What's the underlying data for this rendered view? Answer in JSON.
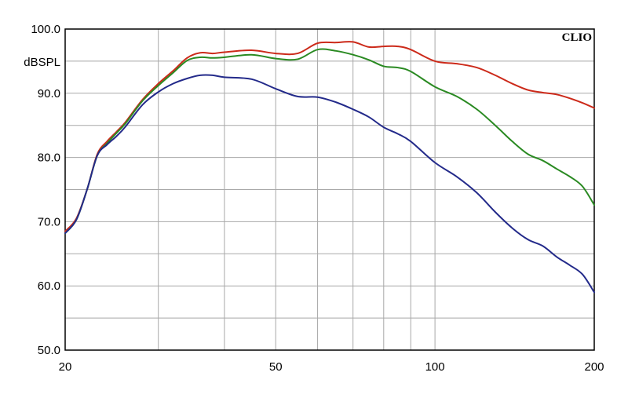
{
  "chart_data": {
    "type": "line",
    "title": "",
    "brand_label": "CLIO",
    "xlabel": "",
    "ylabel": "dBSPL",
    "x_scale": "log",
    "xlim": [
      20,
      200
    ],
    "ylim": [
      50,
      100
    ],
    "grid": true,
    "x_ticks": [
      {
        "value": 20,
        "label": "20"
      },
      {
        "value": 50,
        "label": "50"
      },
      {
        "value": 100,
        "label": "100"
      },
      {
        "value": 200,
        "label": "200"
      }
    ],
    "x_minor_grid": [
      30,
      40,
      60,
      70,
      80,
      90
    ],
    "y_ticks": [
      {
        "value": 100,
        "label": "100.0"
      },
      {
        "value": 90,
        "label": "90.0"
      },
      {
        "value": 80,
        "label": "80.0"
      },
      {
        "value": 70,
        "label": "70.0"
      },
      {
        "value": 60,
        "label": "60.0"
      },
      {
        "value": 50,
        "label": "50.0"
      }
    ],
    "y_minor_grid": [
      95,
      85,
      75,
      65,
      55
    ],
    "series": [
      {
        "color": "#cc2a1a",
        "points": [
          [
            20,
            68.5
          ],
          [
            21,
            70.5
          ],
          [
            22,
            75
          ],
          [
            23,
            80.5
          ],
          [
            24,
            82.5
          ],
          [
            25,
            84
          ],
          [
            26,
            85.5
          ],
          [
            28,
            89
          ],
          [
            30,
            91.5
          ],
          [
            32,
            93.5
          ],
          [
            34,
            95.5
          ],
          [
            36,
            96.3
          ],
          [
            38,
            96.2
          ],
          [
            40,
            96.4
          ],
          [
            45,
            96.7
          ],
          [
            50,
            96.2
          ],
          [
            55,
            96.2
          ],
          [
            60,
            97.8
          ],
          [
            65,
            97.9
          ],
          [
            70,
            98
          ],
          [
            75,
            97.2
          ],
          [
            80,
            97.3
          ],
          [
            85,
            97.3
          ],
          [
            90,
            96.8
          ],
          [
            100,
            95
          ],
          [
            110,
            94.6
          ],
          [
            120,
            94
          ],
          [
            130,
            92.8
          ],
          [
            140,
            91.5
          ],
          [
            150,
            90.5
          ],
          [
            160,
            90.1
          ],
          [
            170,
            89.8
          ],
          [
            180,
            89.2
          ],
          [
            190,
            88.5
          ],
          [
            200,
            87.7
          ]
        ]
      },
      {
        "color": "#2a8a22",
        "points": [
          [
            20,
            68.2
          ],
          [
            21,
            70.3
          ],
          [
            22,
            75
          ],
          [
            23,
            80.3
          ],
          [
            24,
            82.2
          ],
          [
            25,
            83.8
          ],
          [
            26,
            85.3
          ],
          [
            28,
            88.8
          ],
          [
            30,
            91.2
          ],
          [
            32,
            93.2
          ],
          [
            34,
            95.1
          ],
          [
            36,
            95.6
          ],
          [
            38,
            95.5
          ],
          [
            40,
            95.6
          ],
          [
            45,
            96
          ],
          [
            50,
            95.4
          ],
          [
            55,
            95.3
          ],
          [
            60,
            96.8
          ],
          [
            65,
            96.6
          ],
          [
            70,
            96
          ],
          [
            75,
            95.2
          ],
          [
            80,
            94.2
          ],
          [
            85,
            94
          ],
          [
            90,
            93.4
          ],
          [
            100,
            91
          ],
          [
            110,
            89.5
          ],
          [
            120,
            87.5
          ],
          [
            130,
            85
          ],
          [
            140,
            82.5
          ],
          [
            150,
            80.5
          ],
          [
            160,
            79.5
          ],
          [
            170,
            78.2
          ],
          [
            180,
            77
          ],
          [
            190,
            75.5
          ],
          [
            200,
            72.6
          ]
        ]
      },
      {
        "color": "#232a8a",
        "points": [
          [
            20,
            68.2
          ],
          [
            21,
            70.3
          ],
          [
            22,
            75
          ],
          [
            23,
            80.3
          ],
          [
            24,
            82
          ],
          [
            25,
            83.3
          ],
          [
            26,
            84.8
          ],
          [
            28,
            88.2
          ],
          [
            30,
            90.2
          ],
          [
            32,
            91.5
          ],
          [
            34,
            92.3
          ],
          [
            36,
            92.8
          ],
          [
            38,
            92.8
          ],
          [
            40,
            92.5
          ],
          [
            45,
            92.2
          ],
          [
            50,
            90.7
          ],
          [
            55,
            89.5
          ],
          [
            60,
            89.4
          ],
          [
            65,
            88.6
          ],
          [
            70,
            87.5
          ],
          [
            75,
            86.3
          ],
          [
            80,
            84.7
          ],
          [
            85,
            83.7
          ],
          [
            90,
            82.5
          ],
          [
            100,
            79.2
          ],
          [
            110,
            77
          ],
          [
            120,
            74.5
          ],
          [
            130,
            71.5
          ],
          [
            140,
            69
          ],
          [
            150,
            67.2
          ],
          [
            160,
            66.2
          ],
          [
            170,
            64.5
          ],
          [
            180,
            63.2
          ],
          [
            190,
            61.8
          ],
          [
            200,
            59
          ]
        ]
      }
    ]
  }
}
